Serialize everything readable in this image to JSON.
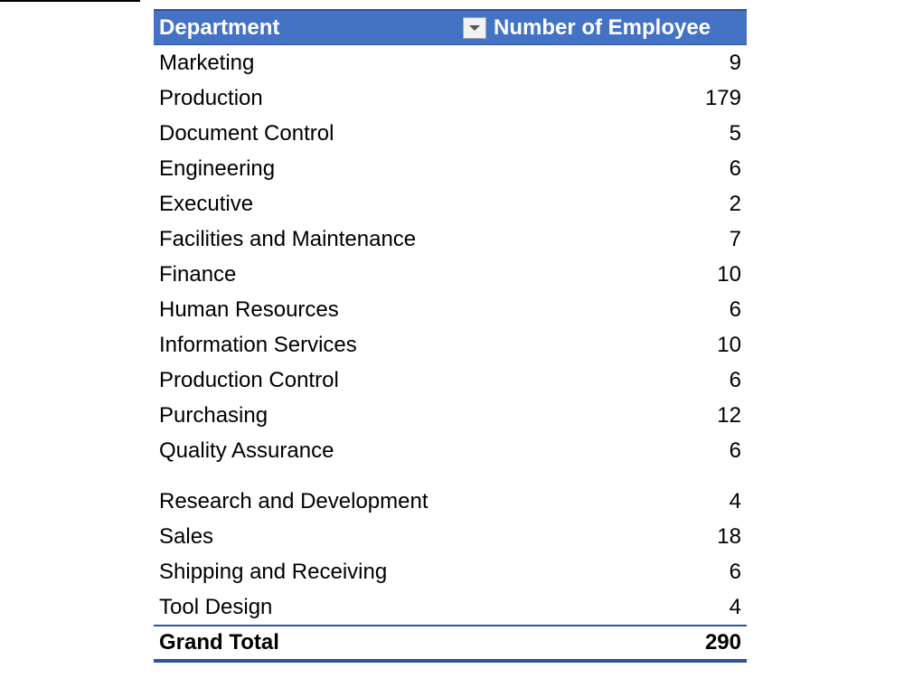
{
  "pivot": {
    "headers": {
      "row_label": "Department",
      "value_label": "Number of Employee"
    },
    "rows": [
      {
        "department": "Marketing",
        "count": "9"
      },
      {
        "department": "Production",
        "count": "179"
      },
      {
        "department": "Document Control",
        "count": "5"
      },
      {
        "department": "Engineering",
        "count": "6"
      },
      {
        "department": "Executive",
        "count": "2"
      },
      {
        "department": "Facilities and Maintenance",
        "count": "7"
      },
      {
        "department": "Finance",
        "count": "10"
      },
      {
        "department": "Human Resources",
        "count": "6"
      },
      {
        "department": "Information Services",
        "count": "10"
      },
      {
        "department": "Production Control",
        "count": "6"
      },
      {
        "department": "Purchasing",
        "count": "12"
      },
      {
        "department": "Quality Assurance",
        "count": "6"
      },
      {
        "department": "Research and Development",
        "count": "4"
      },
      {
        "department": "Sales",
        "count": "18"
      },
      {
        "department": "Shipping and Receiving",
        "count": "6"
      },
      {
        "department": "Tool Design",
        "count": "4"
      }
    ],
    "total": {
      "label": "Grand Total",
      "count": "290"
    },
    "colors": {
      "header_bg": "#4472c4",
      "border": "#2f5597"
    }
  }
}
